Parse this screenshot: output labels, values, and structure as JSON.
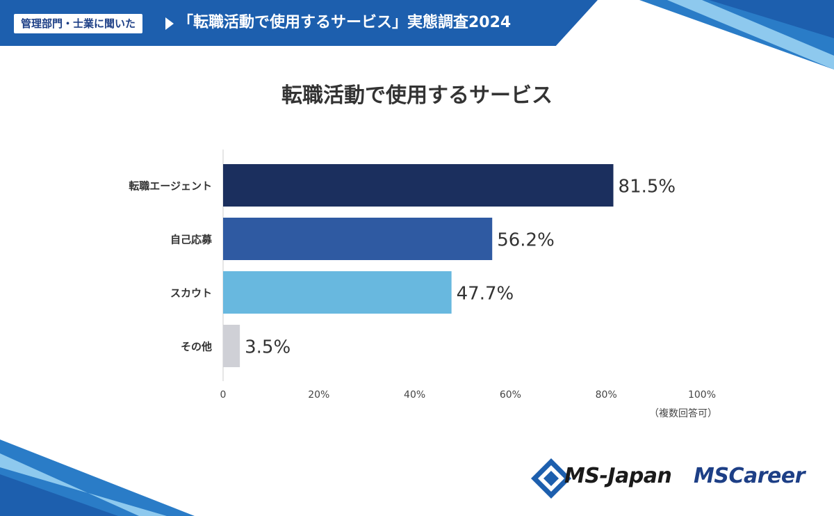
{
  "header": {
    "tag": "管理部門・士業に聞いた",
    "title": "「転職活動で使用するサービス」実態調査2024"
  },
  "note": "（複数回答可）",
  "logos": {
    "ms_japan": "MS-Japan",
    "ms_career": "MSCareer"
  },
  "colors": {
    "header_blue": "#1d5fae",
    "navy": "#1b2f5e",
    "mid_blue": "#2f5aa2",
    "light_blue": "#68b8df",
    "gray": "#cfd0d6"
  },
  "chart_data": {
    "type": "bar",
    "orientation": "horizontal",
    "title": "転職活動で使用するサービス",
    "categories": [
      "転職エージェント",
      "自己応募",
      "スカウト",
      "その他"
    ],
    "values": [
      81.5,
      56.2,
      47.7,
      3.5
    ],
    "value_labels": [
      "81.5%",
      "56.2%",
      "47.7%",
      "3.5%"
    ],
    "bar_colors": [
      "#1b2f5e",
      "#2f5aa2",
      "#68b8df",
      "#cfd0d6"
    ],
    "xlim": [
      0,
      100
    ],
    "xticks": [
      0,
      20,
      40,
      60,
      80,
      100
    ],
    "xtick_labels": [
      "0",
      "20%",
      "40%",
      "60%",
      "80%",
      "100%"
    ],
    "xlabel": "",
    "ylabel": "",
    "grid": false
  }
}
